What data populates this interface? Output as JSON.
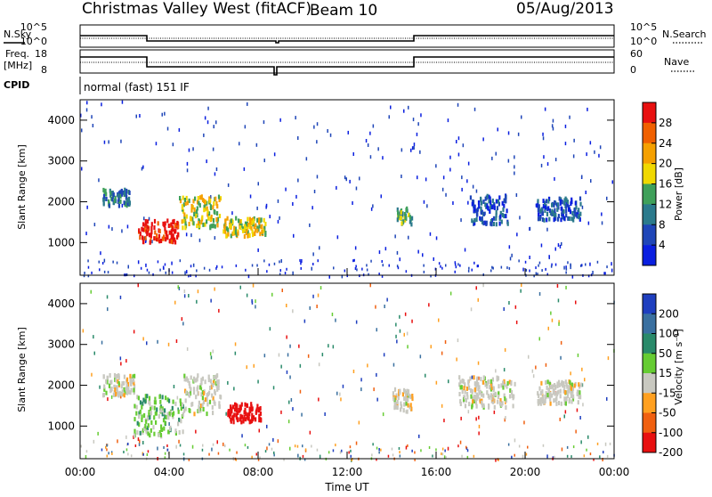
{
  "header": {
    "title": "Christmas Valley West (fitACF)",
    "beam": "Beam 10",
    "date": "05/Aug/2013"
  },
  "status_panels": {
    "nsky_label": "N.Sky",
    "nsky_ticks": [
      "10^5",
      "10^0"
    ],
    "nsearch_label": "N.Search",
    "nsearch_ticks": [
      "10^5",
      "10^0"
    ],
    "freq_label_line1": "Freq.",
    "freq_label_line2": "[MHz]",
    "freq_ticks": [
      "18",
      "8"
    ],
    "nave_label": "Nave",
    "nave_ticks": [
      "60",
      "0"
    ],
    "cpid_label": "CPID",
    "cpid_text": "normal (fast) 151 IF"
  },
  "colors": {
    "power_scale": [
      "#0a1fe0",
      "#1f46b8",
      "#2b7a8c",
      "#3fa05a",
      "#f0d800",
      "#f5a000",
      "#f06000",
      "#e81010"
    ],
    "velocity_scale": [
      "#1f3fbf",
      "#3a70a0",
      "#2a8a6a",
      "#66cc33",
      "#c8c8c0",
      "#ffa020",
      "#f06010",
      "#e81010"
    ],
    "background": "#ffffff"
  },
  "chart_data": [
    {
      "type": "heatmap",
      "panel": "power",
      "xlabel": "",
      "ylabel": "Slant Range [km]",
      "yticks": [
        "1000",
        "2000",
        "3000",
        "4000"
      ],
      "ylim": [
        200,
        4500
      ],
      "xlim": [
        0,
        24
      ],
      "colorbar_label": "Power [dB]",
      "colorbar_ticks": [
        "4",
        "8",
        "12",
        "16",
        "20",
        "24",
        "28"
      ],
      "features": [
        {
          "t0": 1.0,
          "t1": 2.2,
          "r0": 1950,
          "r1": 2350,
          "level": 2
        },
        {
          "t0": 2.6,
          "t1": 4.4,
          "r0": 1050,
          "r1": 1600,
          "level": 7
        },
        {
          "t0": 4.4,
          "t1": 6.3,
          "r0": 1400,
          "r1": 2200,
          "level": 4
        },
        {
          "t0": 6.4,
          "t1": 8.3,
          "r0": 1200,
          "r1": 1650,
          "level": 4
        },
        {
          "t0": 14.2,
          "t1": 14.9,
          "r0": 1500,
          "r1": 1900,
          "level": 3
        },
        {
          "t0": 17.5,
          "t1": 19.2,
          "r0": 1500,
          "r1": 2200,
          "level": 1
        },
        {
          "t0": 20.5,
          "t1": 22.5,
          "r0": 1600,
          "r1": 2150,
          "level": 1
        }
      ]
    },
    {
      "type": "heatmap",
      "panel": "velocity",
      "xlabel": "Time UT",
      "ylabel": "Slant Range [km]",
      "xticks": [
        "00:00",
        "04:00",
        "08:00",
        "12:00",
        "16:00",
        "20:00",
        "00:00"
      ],
      "yticks": [
        "1000",
        "2000",
        "3000",
        "4000"
      ],
      "ylim": [
        200,
        4500
      ],
      "xlim": [
        0,
        24
      ],
      "colorbar_label": "Velocity [m s⁻¹]",
      "colorbar_ticks": [
        "200",
        "100",
        "50",
        "15",
        "-15",
        "-50",
        "-100",
        "-200"
      ],
      "features": [
        {
          "t0": 1.0,
          "t1": 2.4,
          "r0": 1800,
          "r1": 2300,
          "value": 0
        },
        {
          "t0": 2.4,
          "t1": 4.6,
          "r0": 800,
          "r1": 1800,
          "value": 20
        },
        {
          "t0": 4.6,
          "t1": 6.3,
          "r0": 1300,
          "r1": 2300,
          "value": 0
        },
        {
          "t0": 6.6,
          "t1": 8.1,
          "r0": 1150,
          "r1": 1600,
          "value": -250
        },
        {
          "t0": 14.0,
          "t1": 14.9,
          "r0": 1400,
          "r1": 1950,
          "value": 0
        },
        {
          "t0": 17.0,
          "t1": 19.5,
          "r0": 1500,
          "r1": 2250,
          "value": 0
        },
        {
          "t0": 20.5,
          "t1": 22.5,
          "r0": 1600,
          "r1": 2150,
          "value": 0
        }
      ]
    }
  ]
}
